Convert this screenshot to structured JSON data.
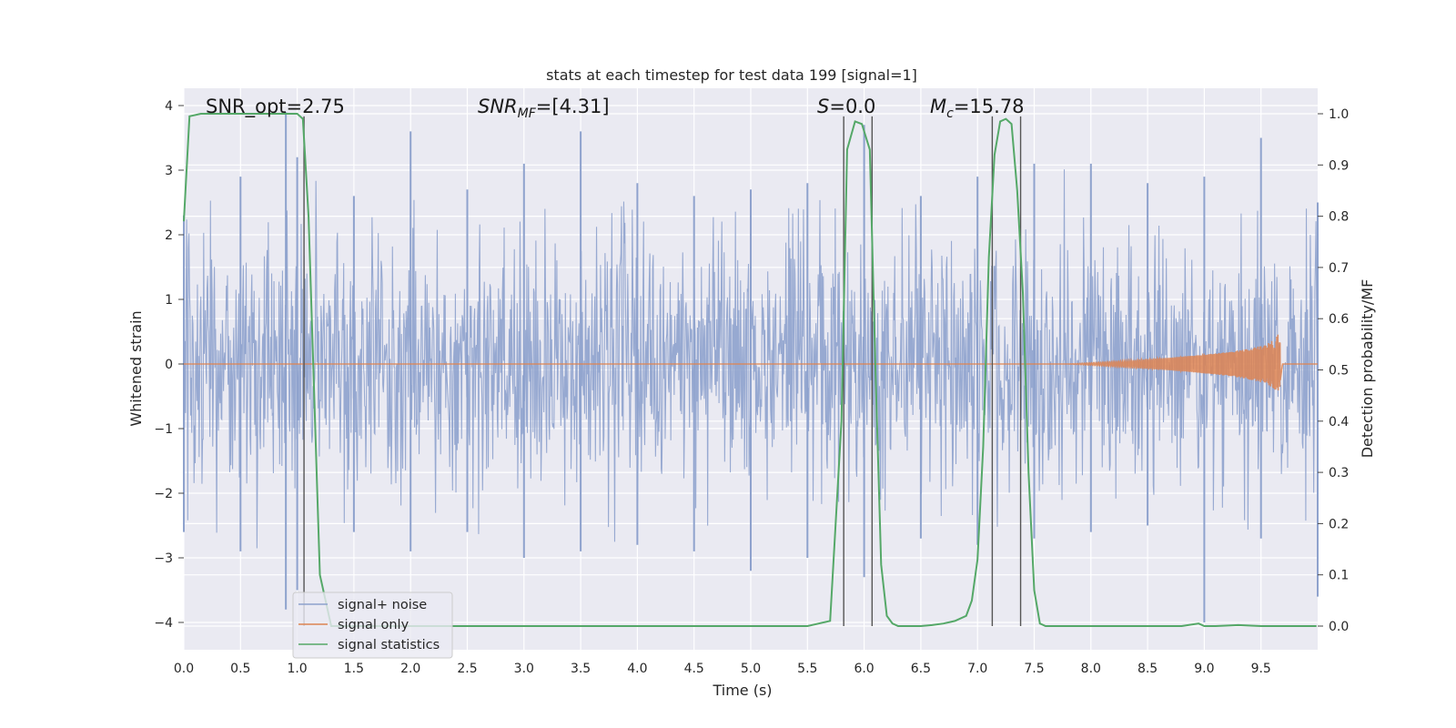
{
  "chart_data": {
    "type": "line",
    "title": "stats at each timestep for test data 199 [signal=1]",
    "xlabel": "Time (s)",
    "ylabel_left": "Whitened strain",
    "ylabel_right": "Detection probability/MF",
    "xlim": [
      0.0,
      10.0
    ],
    "ylim_left": [
      -4.4,
      4.25
    ],
    "ylim_right": [
      -0.05,
      1.035
    ],
    "xticks": [
      "0.0",
      "0.5",
      "1.0",
      "1.5",
      "2.0",
      "2.5",
      "3.0",
      "3.5",
      "4.0",
      "4.5",
      "5.0",
      "5.5",
      "6.0",
      "6.5",
      "7.0",
      "7.5",
      "8.0",
      "8.5",
      "9.0",
      "9.5"
    ],
    "yticks_left": [
      "4",
      "3",
      "2",
      "1",
      "0",
      "−1",
      "−2",
      "−3",
      "−4"
    ],
    "yticks_right": [
      "1.0",
      "0.9",
      "0.8",
      "0.7",
      "0.6",
      "0.5",
      "0.4",
      "0.3",
      "0.2",
      "0.1",
      "0.0"
    ],
    "grid": true,
    "legend_position": "lower-left",
    "annotations": {
      "snr_opt": "SNR_opt=2.75",
      "snr_mf_prefix": "SNR",
      "snr_mf_sub": "MF",
      "snr_mf_value": "=[4.31]",
      "s_var": "S",
      "s_value": "=0.0",
      "mc_var": "M",
      "mc_sub": "c",
      "mc_value": "=15.78"
    },
    "vlines_x": [
      1.06,
      5.82,
      6.07,
      7.13,
      7.38
    ],
    "series": [
      {
        "name": "signal+ noise",
        "color": "#8ea2cd",
        "axis": "left",
        "envelope": {
          "x": [
            0.0,
            0.5,
            0.9,
            1.0,
            1.5,
            2.0,
            2.5,
            3.0,
            3.5,
            4.0,
            4.5,
            5.0,
            5.5,
            6.0,
            6.5,
            7.0,
            7.5,
            8.0,
            8.5,
            9.0,
            9.5,
            10.0
          ],
          "max": [
            2.3,
            2.9,
            3.9,
            3.2,
            2.6,
            3.6,
            2.7,
            3.1,
            3.6,
            2.8,
            2.6,
            2.7,
            2.8,
            3.7,
            2.6,
            2.9,
            3.1,
            3.1,
            2.8,
            2.9,
            3.5,
            2.5
          ],
          "min": [
            -2.6,
            -2.9,
            -3.8,
            -3.5,
            -2.6,
            -2.9,
            -2.6,
            -3.0,
            -2.9,
            -2.8,
            -2.9,
            -3.2,
            -3.0,
            -3.3,
            -2.7,
            -2.8,
            -2.7,
            -2.6,
            -2.5,
            -4.0,
            -2.7,
            -3.6
          ]
        },
        "typical_band": [
          -1.4,
          1.4
        ]
      },
      {
        "name": "signal only",
        "color": "#dd8452",
        "axis": "left",
        "chirp": {
          "start": 7.8,
          "peak": 9.67,
          "peak_amplitude": 0.55
        }
      },
      {
        "name": "signal statistics",
        "color": "#55a868",
        "axis": "right",
        "x": [
          0.0,
          0.05,
          0.15,
          0.5,
          0.9,
          1.0,
          1.05,
          1.1,
          1.2,
          1.3,
          1.5,
          2.0,
          3.0,
          4.0,
          5.0,
          5.5,
          5.7,
          5.8,
          5.85,
          5.92,
          5.98,
          6.05,
          6.1,
          6.15,
          6.2,
          6.25,
          6.3,
          6.4,
          6.5,
          6.6,
          6.7,
          6.8,
          6.9,
          6.95,
          7.0,
          7.05,
          7.1,
          7.15,
          7.2,
          7.25,
          7.3,
          7.35,
          7.4,
          7.45,
          7.5,
          7.55,
          7.6,
          7.7,
          8.0,
          8.5,
          8.8,
          8.95,
          9.0,
          9.1,
          9.3,
          9.5,
          9.7,
          9.99
        ],
        "y": [
          0.79,
          0.995,
          1.0,
          1.0,
          1.0,
          1.0,
          0.99,
          0.8,
          0.1,
          0.0,
          0.0,
          0.0,
          0.0,
          0.0,
          0.0,
          0.0,
          0.01,
          0.4,
          0.93,
          0.985,
          0.98,
          0.93,
          0.5,
          0.12,
          0.02,
          0.005,
          0.0,
          0.0,
          0.0,
          0.002,
          0.005,
          0.01,
          0.02,
          0.05,
          0.13,
          0.35,
          0.72,
          0.92,
          0.985,
          0.99,
          0.98,
          0.85,
          0.65,
          0.3,
          0.07,
          0.005,
          0.0,
          0.0,
          0.0,
          0.0,
          0.0,
          0.005,
          0.0,
          0.0,
          0.002,
          0.0,
          0.0,
          0.0
        ]
      }
    ]
  }
}
